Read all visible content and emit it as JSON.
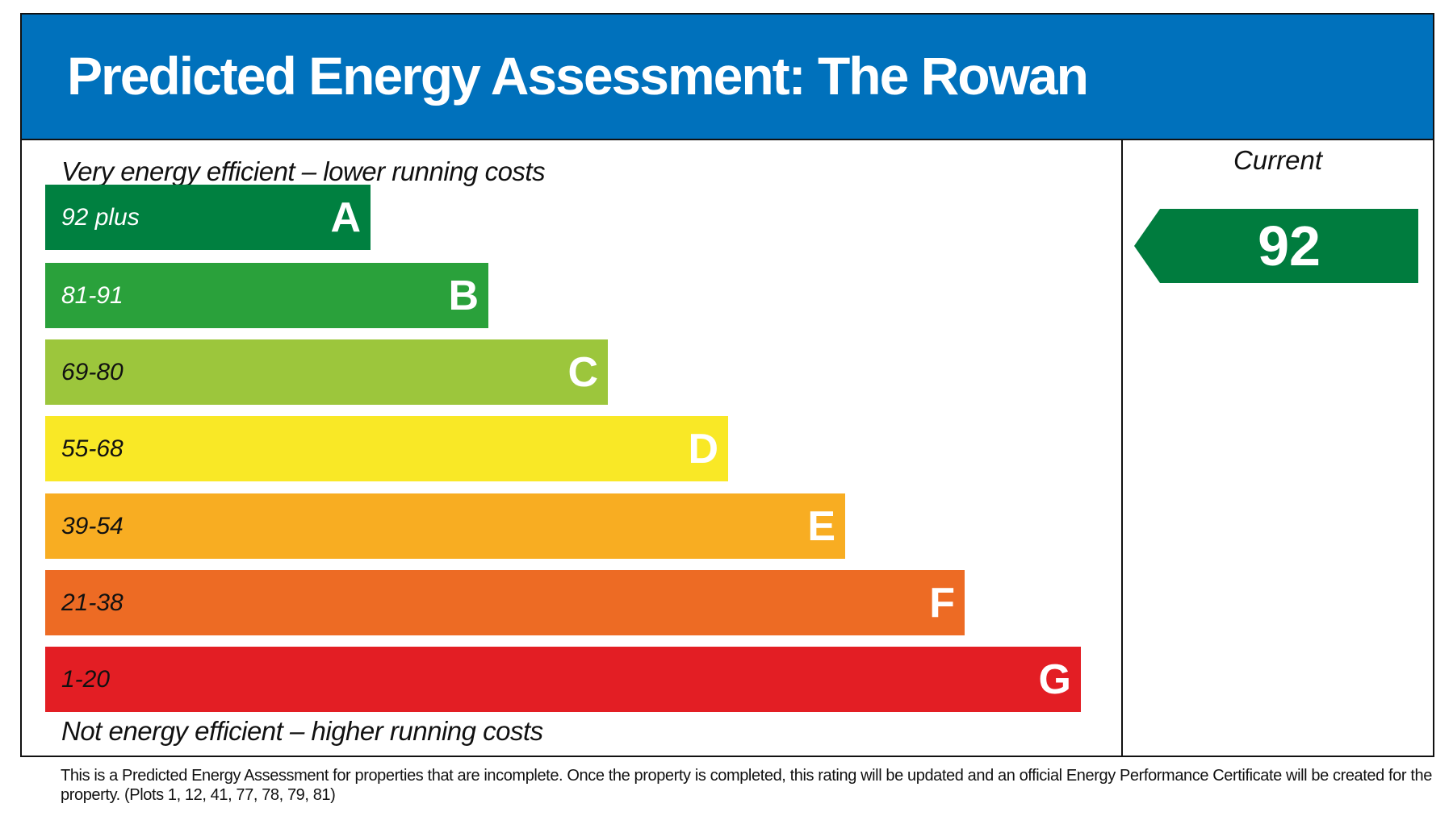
{
  "title": "Predicted Energy Assessment: The Rowan",
  "top_label": "Very energy efficient – lower running costs",
  "bottom_label": "Not energy efficient – higher running costs",
  "current_label": "Current",
  "chart_data": {
    "type": "bar",
    "bands": [
      {
        "range": "92 plus",
        "letter": "A",
        "color": "#008040",
        "text_color": "#ffffff"
      },
      {
        "range": "81-91",
        "letter": "B",
        "color": "#2aa13b",
        "text_color": "#ffffff"
      },
      {
        "range": "69-80",
        "letter": "C",
        "color": "#9cc63c",
        "text_color": "#111111"
      },
      {
        "range": "55-68",
        "letter": "D",
        "color": "#f9e826",
        "text_color": "#111111"
      },
      {
        "range": "39-54",
        "letter": "E",
        "color": "#f8ad22",
        "text_color": "#111111"
      },
      {
        "range": "21-38",
        "letter": "F",
        "color": "#ed6b24",
        "text_color": "#111111"
      },
      {
        "range": "1-20",
        "letter": "G",
        "color": "#e31e24",
        "text_color": "#111111"
      }
    ],
    "current": {
      "value": "92",
      "band": "A",
      "color": "#007c3e"
    }
  },
  "footer": "This is a Predicted Energy Assessment for properties that are incomplete. Once the property is completed, this rating will be updated and an official Energy Performance Certificate will be created for the property. (Plots 1, 12, 41, 77, 78, 79, 81)",
  "colors": {
    "header": "#0071bc"
  }
}
